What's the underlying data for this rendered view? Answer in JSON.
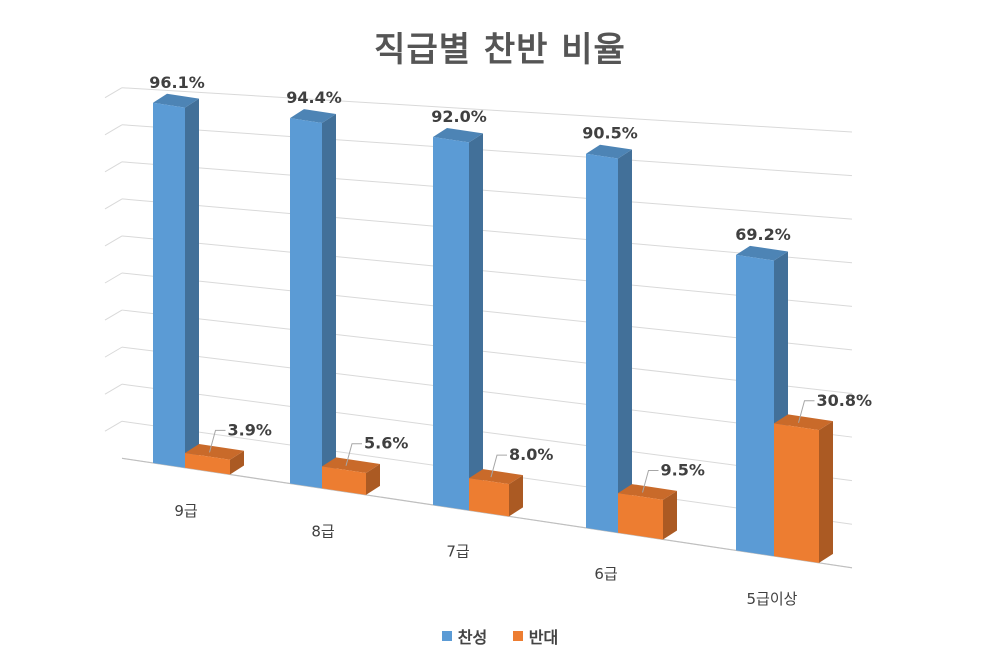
{
  "chart_data": {
    "type": "bar",
    "title": "직급별 찬반 비율",
    "categories": [
      "9급",
      "8급",
      "7급",
      "6급",
      "5급이상"
    ],
    "series": [
      {
        "name": "찬성",
        "values": [
          96.1,
          94.4,
          92.0,
          90.5,
          69.2
        ],
        "labels": [
          "96.1%",
          "94.4%",
          "92.0%",
          "90.5%",
          "69.2%"
        ],
        "color": "#5B9BD5"
      },
      {
        "name": "반대",
        "values": [
          3.9,
          5.6,
          8.0,
          9.5,
          30.8
        ],
        "labels": [
          "3.9%",
          "5.6%",
          "8.0%",
          "9.5%",
          "30.8%"
        ],
        "color": "#ED7D31"
      }
    ],
    "ylim": [
      0,
      100
    ],
    "unit": "%",
    "grid": true,
    "style": "3d-perspective",
    "legend_position": "bottom"
  }
}
